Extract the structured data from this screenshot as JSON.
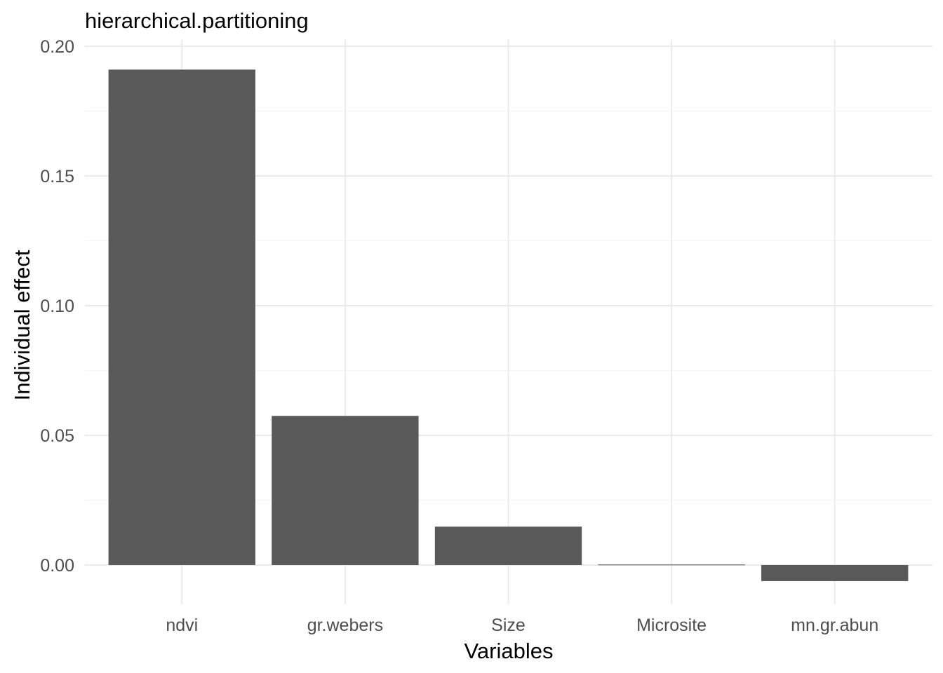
{
  "chart_data": {
    "type": "bar",
    "title": "hierarchical.partitioning",
    "xlabel": "Variables",
    "ylabel": "Individual effect",
    "categories": [
      "ndvi",
      "gr.webers",
      "Size",
      "Microsite",
      "mn.gr.abun"
    ],
    "values": [
      0.191,
      0.0575,
      0.0148,
      0.0002,
      -0.0062
    ],
    "ylim": [
      -0.01,
      0.2
    ],
    "yticks": [
      0.0,
      0.05,
      0.1,
      0.15,
      0.2
    ],
    "ytick_labels": [
      "0.00",
      "0.05",
      "0.10",
      "0.15",
      "0.20"
    ],
    "grid": true,
    "bar_color": "#595959",
    "grid_color": "#ebebeb"
  }
}
